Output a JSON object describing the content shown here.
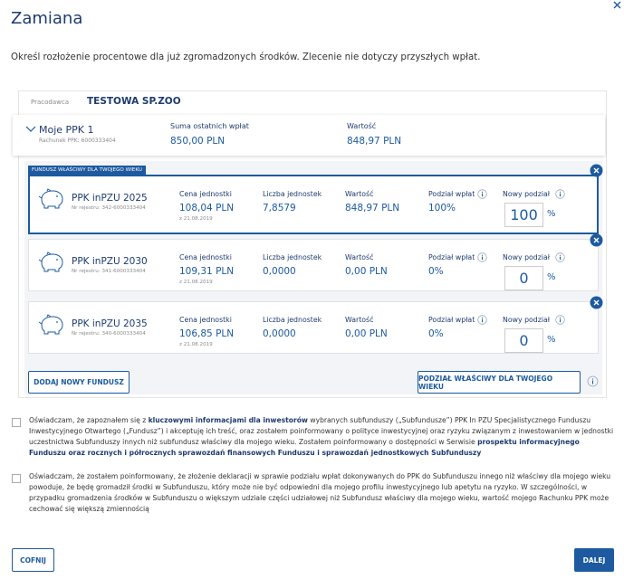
{
  "header": {
    "title": "Zamiana"
  },
  "description": "Określ rozłożenie procentowe dla już zgromadzonych środków. Zlecenie nie dotyczy przyszłych wpłat.",
  "employer": {
    "label": "Pracodawca",
    "value": "TESTOWA SP.ZOO"
  },
  "account": {
    "name": "Moje PPK 1",
    "number": "Rachunek PPK: 6000333404",
    "sum_label": "Suma ostatnich wpłat",
    "sum_value": "850,00 PLN",
    "value_label": "Wartość",
    "value": "848,97 PLN"
  },
  "badge": "FUNDUSZ WŁAŚCIWY DLA TWOJEGO WIEKU",
  "funds": [
    {
      "name": "PPK inPZU 2025",
      "register": "Nr rejestru: 342-6000333404",
      "price_label": "Cena jednostki",
      "price": "108,04 PLN",
      "price_date": "z 21.08.2019",
      "units_label": "Liczba jednostek",
      "units": "7,8579",
      "value_label": "Wartość",
      "value": "848,97 PLN",
      "share_label": "Podział wpłat",
      "share": "100%",
      "new_label": "Nowy podział",
      "new_value": "100",
      "unit": "%"
    },
    {
      "name": "PPK inPZU 2030",
      "register": "Nr rejestru: 341-6000333404",
      "price_label": "Cena jednostki",
      "price": "109,31 PLN",
      "price_date": "z 21.08.2019",
      "units_label": "Liczba jednostek",
      "units": "0,0000",
      "value_label": "Wartość",
      "value": "0,00 PLN",
      "share_label": "Podział wpłat",
      "share": "0%",
      "new_label": "Nowy podział",
      "new_value": "0",
      "unit": "%"
    },
    {
      "name": "PPK inPZU 2035",
      "register": "Nr rejestru: 340-6000333404",
      "price_label": "Cena jednostki",
      "price": "106,85 PLN",
      "price_date": "z 21.08.2019",
      "units_label": "Liczba jednostek",
      "units": "0,0000",
      "value_label": "Wartość",
      "value": "0,00 PLN",
      "share_label": "Podział wpłat",
      "share": "0%",
      "new_label": "Nowy podział",
      "new_value": "0",
      "unit": "%"
    }
  ],
  "buttons": {
    "add_fund": "DODAJ NOWY FUNDUSZ",
    "age_split": "PODZIAŁ WŁAŚCIWY DLA TWOJEGO WIEKU",
    "back": "COFNIJ",
    "next": "DALEJ"
  },
  "consents": [
    [
      "Oświadczam, że zapoznałem się z ",
      "kluczowymi informacjami dla inwestorów",
      " wybranych subfunduszy („Subfundusze”) PPK In PZU Specjalistycznego Funduszu Inwestycyjnego Otwartego („Fundusz”) i akceptuję ich treść, oraz zostałem poinformowany o polityce inwestycyjnej oraz ryzyku związanym z inwestowaniem w jednostki uczestnictwa Subfunduszy innych niż subfundusz właściwy dla mojego wieku. Zostałem poinformowany o dostępności w Serwisie ",
      "prospektu informacyjnego Funduszu oraz rocznych i półrocznych sprawozdań finansowych Funduszu i sprawozdań jednostkowych Subfunduszy"
    ],
    [
      "Oświadczam, że zostałem poinformowany, że złożenie deklaracji w sprawie podziału wpłat dokonywanych do PPK do Subfunduszu innego niż właściwy dla mojego wieku powoduje, że będę gromadził środki w Subfunduszu, który może nie być odpowiedni dla mojego profilu inwestycyjnego lub apetytu na ryzyko. W szczególności, w przypadku gromadzenia środków w Subfunduszu o większym udziale części udziałowej niż Subfundusz właściwy dla mojego wieku, wartość mojego Rachunku PPK może cechować się większą zmiennością"
    ]
  ]
}
